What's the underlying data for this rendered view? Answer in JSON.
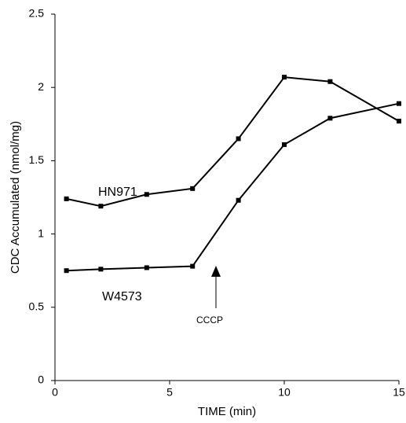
{
  "chart_data": {
    "type": "line",
    "x_label": "TIME (min)",
    "y_label": "CDC Accumulated (nmol/mg)",
    "annotations": [
      "HN971",
      "W4573",
      "CCCP"
    ],
    "x": [
      0.5,
      2,
      4,
      6,
      8,
      10,
      12,
      15
    ],
    "series": [
      {
        "name": "HN971",
        "color": "#000000",
        "values": [
          1.24,
          1.19,
          1.27,
          1.31,
          1.65,
          2.07,
          2.04,
          1.77
        ]
      },
      {
        "name": "W4573",
        "color": "#000000",
        "values": [
          0.75,
          0.76,
          0.77,
          0.78,
          1.23,
          1.61,
          1.79,
          1.89
        ]
      }
    ],
    "xlim": [
      0,
      15
    ],
    "xticks": [
      0,
      5,
      10,
      15
    ],
    "ylim": [
      0,
      2.5
    ],
    "yticks": [
      0,
      0.5,
      1,
      1.5,
      2,
      2.5
    ],
    "grid": false
  }
}
